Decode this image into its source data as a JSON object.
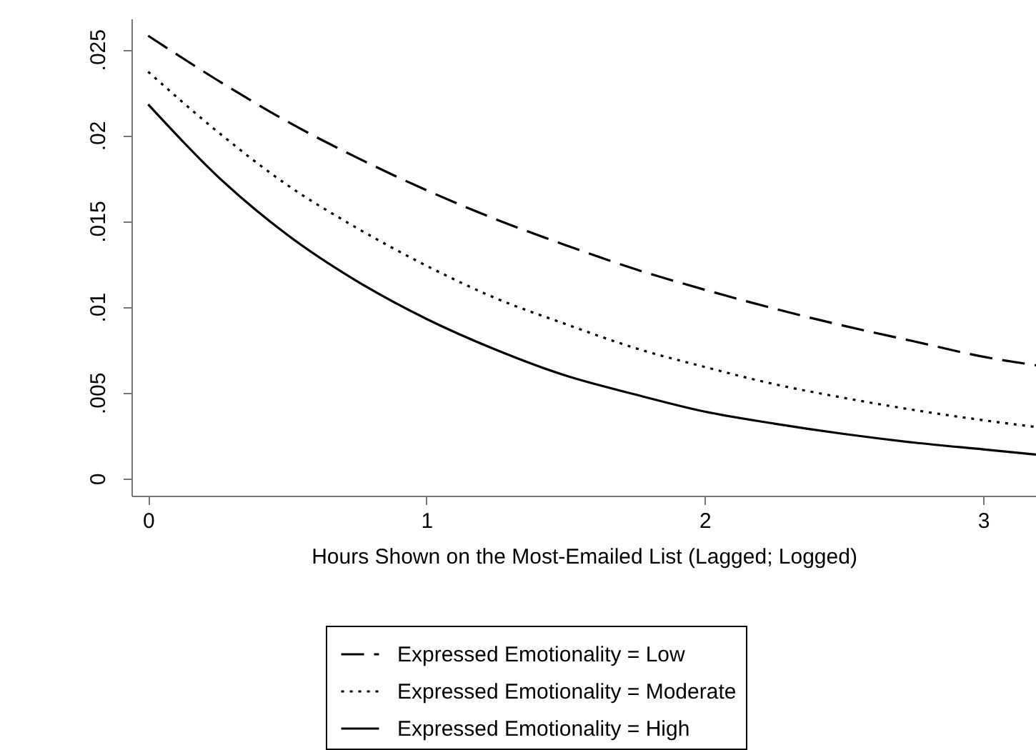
{
  "chart_data": {
    "type": "line",
    "xlabel": "Hours Shown on the Most-Emailed List (Lagged; Logged)",
    "x": [
      0,
      0.25,
      0.5,
      0.75,
      1,
      1.25,
      1.5,
      1.75,
      2,
      2.25,
      2.5,
      2.75,
      3,
      3.19
    ],
    "series": [
      {
        "name": "Expressed Emotionality = Low",
        "color": "#000000",
        "line_style": "dashed",
        "values": [
          0.0258,
          0.0232,
          0.0208,
          0.0187,
          0.0168,
          0.0151,
          0.0136,
          0.0122,
          0.011,
          0.0099,
          0.0089,
          0.008,
          0.0071,
          0.0066
        ]
      },
      {
        "name": "Expressed Emotionality = Moderate",
        "color": "#000000",
        "line_style": "dotted",
        "values": [
          0.0237,
          0.0202,
          0.0171,
          0.0146,
          0.0124,
          0.0105,
          0.009,
          0.0076,
          0.0065,
          0.0055,
          0.0047,
          0.004,
          0.0034,
          0.003
        ]
      },
      {
        "name": "Expressed Emotionality = High",
        "color": "#000000",
        "line_style": "solid",
        "values": [
          0.0218,
          0.0176,
          0.0142,
          0.0115,
          0.0093,
          0.0075,
          0.006,
          0.0049,
          0.0039,
          0.0032,
          0.0026,
          0.0021,
          0.0017,
          0.0014
        ]
      }
    ],
    "xlim": [
      -0.06,
      3.19
    ],
    "xticks": [
      0,
      1,
      2,
      3
    ],
    "ylim": [
      -0.001,
      0.0268
    ],
    "yticks": [
      0,
      {
        "value": 0.005,
        "label": ".005"
      },
      {
        "value": 0.01,
        "label": ".01"
      },
      {
        "value": 0.015,
        "label": ".015"
      },
      {
        "value": 0.02,
        "label": ".02"
      },
      {
        "value": 0.025,
        "label": ".025"
      }
    ],
    "grid": false,
    "legend": "bottom",
    "marker": "none"
  }
}
